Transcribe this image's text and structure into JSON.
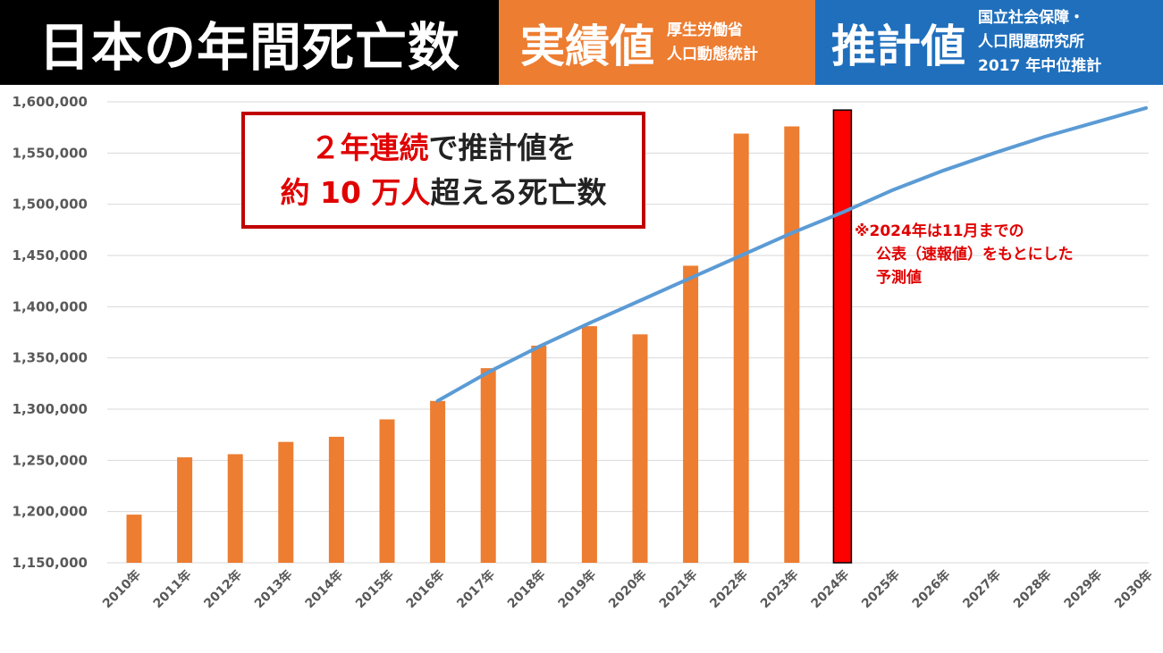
{
  "header": {
    "title": "日本の年間死亡数",
    "actual_label": "実績値",
    "actual_source": [
      "厚生労働省",
      "人口動態統計"
    ],
    "projection_label": "推計値",
    "projection_source": [
      "国立社会保障・",
      "人口問題研究所",
      "2017 年中位推計"
    ]
  },
  "callout": {
    "line1_red": "２年連続",
    "line1_rest": "で推計値を",
    "line2_red": "約 10 万人",
    "line2_rest": "超える死亡数"
  },
  "note": [
    "※2024年は11月までの",
    "公表（速報値）をもとにした",
    "予測値"
  ],
  "chart_data": {
    "type": "bar",
    "categories": [
      "2010年",
      "2011年",
      "2012年",
      "2013年",
      "2014年",
      "2015年",
      "2016年",
      "2017年",
      "2018年",
      "2019年",
      "2020年",
      "2021年",
      "2022年",
      "2023年",
      "2024年",
      "2025年",
      "2026年",
      "2027年",
      "2028年",
      "2029年",
      "2030年"
    ],
    "series": [
      {
        "type": "bar",
        "values": [
          1197000,
          1253000,
          1256000,
          1268000,
          1273000,
          1290000,
          1308000,
          1340000,
          1362000,
          1381000,
          1373000,
          1440000,
          1569000,
          1576000,
          1592000,
          null,
          null,
          null,
          null,
          null,
          null
        ]
      },
      {
        "type": "line",
        "values": [
          null,
          null,
          null,
          null,
          null,
          null,
          1308000,
          1336000,
          1361000,
          1384000,
          1406000,
          1428000,
          1450000,
          1472000,
          1492000,
          1514000,
          1533000,
          1550000,
          1566000,
          1580000,
          1594000
        ]
      }
    ],
    "highlight_category": "2024年",
    "ylim": [
      1150000,
      1600000
    ],
    "yticks": [
      "1,150,000",
      "1,200,000",
      "1,250,000",
      "1,300,000",
      "1,350,000",
      "1,400,000",
      "1,450,000",
      "1,500,000",
      "1,550,000",
      "1,600,000"
    ],
    "grid": true,
    "colors": {
      "bar": "#ed7d31",
      "line": "#5b9bd5",
      "highlight": "#ff0000"
    }
  }
}
